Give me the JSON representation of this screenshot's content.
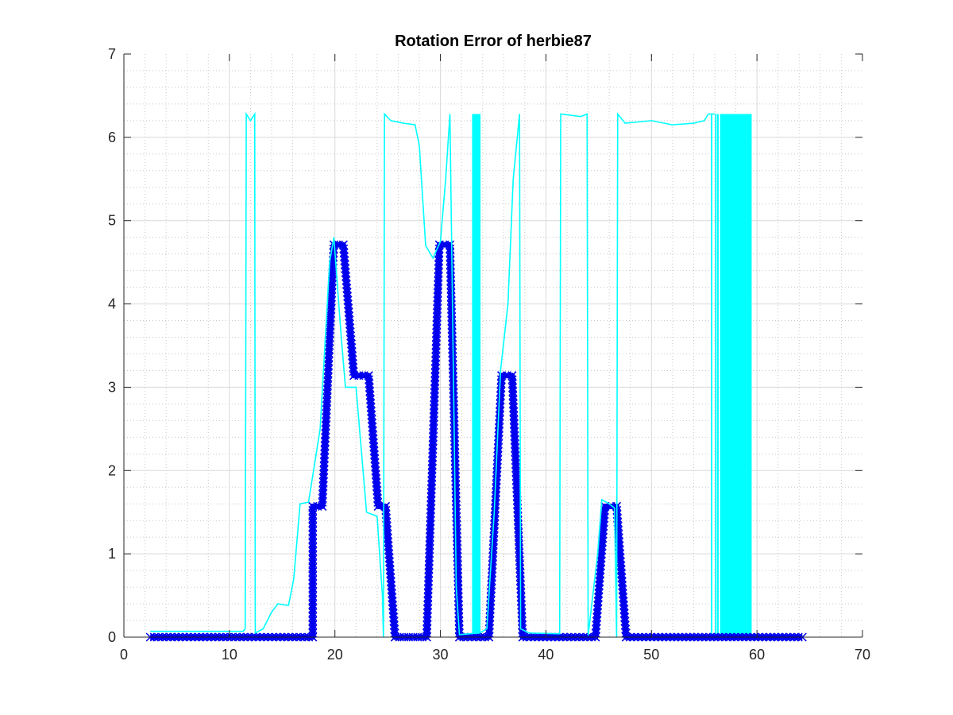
{
  "chart_data": {
    "type": "line",
    "title": "Rotation Error of herbie87",
    "xlabel": "",
    "ylabel": "",
    "xlim": [
      0,
      70
    ],
    "ylim": [
      0,
      7
    ],
    "x_ticks": [
      "0",
      "10",
      "20",
      "30",
      "40",
      "50",
      "60",
      "70"
    ],
    "y_ticks": [
      "0",
      "1",
      "2",
      "3",
      "4",
      "5",
      "6",
      "7"
    ],
    "grid": "major and minor",
    "legend": "none",
    "colors": {
      "series_thick": "#0000ee",
      "series_thin": "#00ffff",
      "axes": "#262626",
      "major_grid": "#d9d9d9",
      "minor_grid": "#c8c8c8"
    },
    "series": [
      {
        "style": "thick line with x markers",
        "color": "#0000ee",
        "points": [
          [
            2.5,
            0
          ],
          [
            17.9,
            0
          ],
          [
            17.9,
            1.57
          ],
          [
            18.8,
            1.57
          ],
          [
            19.9,
            4.71
          ],
          [
            20.8,
            4.71
          ],
          [
            21.8,
            3.14
          ],
          [
            23.2,
            3.14
          ],
          [
            24.1,
            1.57
          ],
          [
            24.8,
            1.57
          ],
          [
            25.7,
            0
          ],
          [
            28.7,
            0
          ],
          [
            29.9,
            4.71
          ],
          [
            30.9,
            4.71
          ],
          [
            31.8,
            0
          ],
          [
            34.6,
            0
          ],
          [
            35.8,
            3.14
          ],
          [
            36.8,
            3.14
          ],
          [
            37.8,
            0
          ],
          [
            44.7,
            0
          ],
          [
            45.6,
            1.57
          ],
          [
            46.7,
            1.57
          ],
          [
            47.6,
            0
          ],
          [
            64.3,
            0
          ]
        ]
      },
      {
        "style": "thin line",
        "color": "#00ffff",
        "points": [
          [
            2.5,
            0.07
          ],
          [
            11.3,
            0.07
          ],
          [
            11.5,
            0.1
          ],
          [
            11.6,
            6.28
          ],
          [
            12.0,
            6.2
          ],
          [
            12.4,
            6.28
          ],
          [
            12.45,
            0.05
          ],
          [
            13.2,
            0.1
          ],
          [
            14.0,
            0.3
          ],
          [
            14.6,
            0.4
          ],
          [
            15.6,
            0.38
          ],
          [
            16.1,
            0.7
          ],
          [
            16.7,
            1.6
          ],
          [
            17.5,
            1.62
          ],
          [
            18.6,
            2.5
          ],
          [
            19.5,
            4.5
          ],
          [
            19.9,
            4.8
          ],
          [
            20.6,
            3.6
          ],
          [
            21.0,
            3.0
          ],
          [
            22.0,
            3.0
          ],
          [
            23.0,
            1.5
          ],
          [
            24.0,
            1.45
          ],
          [
            24.5,
            0.5
          ],
          [
            24.6,
            0.0
          ],
          [
            24.7,
            6.28
          ],
          [
            25.3,
            6.2
          ],
          [
            26.5,
            6.17
          ],
          [
            27.6,
            6.15
          ],
          [
            28.0,
            5.9
          ],
          [
            28.6,
            4.7
          ],
          [
            29.3,
            4.55
          ],
          [
            30.0,
            4.75
          ],
          [
            30.5,
            5.5
          ],
          [
            30.9,
            6.28
          ],
          [
            31.5,
            0.6
          ],
          [
            31.8,
            0.03
          ],
          [
            33.7,
            0.05
          ],
          [
            34.4,
            0.1
          ],
          [
            35.1,
            1.5
          ],
          [
            35.7,
            3.2
          ],
          [
            36.4,
            4.0
          ],
          [
            36.9,
            5.5
          ],
          [
            37.5,
            6.28
          ],
          [
            37.6,
            0.1
          ],
          [
            38.4,
            0.05
          ],
          [
            41.3,
            0.04
          ],
          [
            41.4,
            6.28
          ],
          [
            43.3,
            6.25
          ],
          [
            43.9,
            6.28
          ],
          [
            44.0,
            0.02
          ],
          [
            44.9,
            1.0
          ],
          [
            45.3,
            1.65
          ],
          [
            46.0,
            1.6
          ],
          [
            46.5,
            1.55
          ],
          [
            46.7,
            0
          ],
          [
            46.8,
            6.28
          ],
          [
            47.5,
            6.17
          ],
          [
            50.0,
            6.2
          ],
          [
            52.0,
            6.15
          ],
          [
            54.0,
            6.17
          ],
          [
            55.0,
            6.2
          ],
          [
            55.4,
            6.28
          ],
          [
            56.0,
            6.28
          ]
        ]
      }
    ],
    "filled_bands": [
      {
        "x_start": 33.0,
        "x_end": 33.8,
        "y_min": 0,
        "y_max": 6.28,
        "color": "#00ffff"
      },
      {
        "x_start": 56.5,
        "x_end": 59.5,
        "y_min": 0,
        "y_max": 6.28,
        "color": "#00ffff"
      }
    ],
    "spikes": [
      55.7,
      56.1,
      56.3
    ]
  }
}
